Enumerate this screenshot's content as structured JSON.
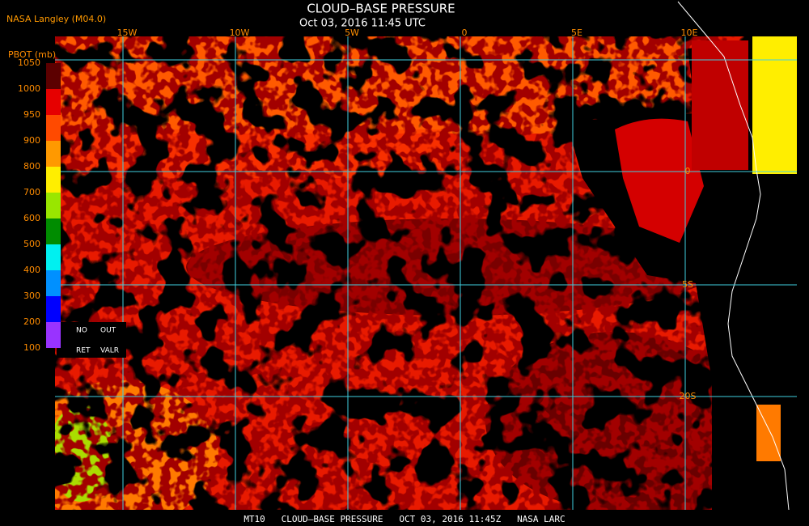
{
  "header": {
    "title": "CLOUD–BASE PRESSURE",
    "subtitle": "Oct 03, 2016 11:45 UTC",
    "source": "NASA Langley (M04.0)"
  },
  "legend": {
    "title": "PBOT (mb)",
    "ticks": [
      "1050",
      "1000",
      "950",
      "900",
      "800",
      "700",
      "600",
      "500",
      "400",
      "300",
      "200",
      "100"
    ],
    "colors": [
      "#5c0000",
      "#e60000",
      "#ff4a00",
      "#ff9900",
      "#ffee00",
      "#99e600",
      "#008c00",
      "#00f0f0",
      "#0090ff",
      "#0000ff",
      "#9933ff"
    ],
    "flags": [
      "NO",
      "OUT",
      "RET",
      "VALR"
    ]
  },
  "grid": {
    "lon_labels": [
      "15W",
      "10W",
      "5W",
      "0",
      "5E",
      "10E"
    ],
    "lat_labels": [
      "0",
      "5S",
      "20S"
    ]
  },
  "footer": "MT10   CLOUD–BASE PRESSURE   OCT 03, 2016 11:45Z   NASA LARC"
}
